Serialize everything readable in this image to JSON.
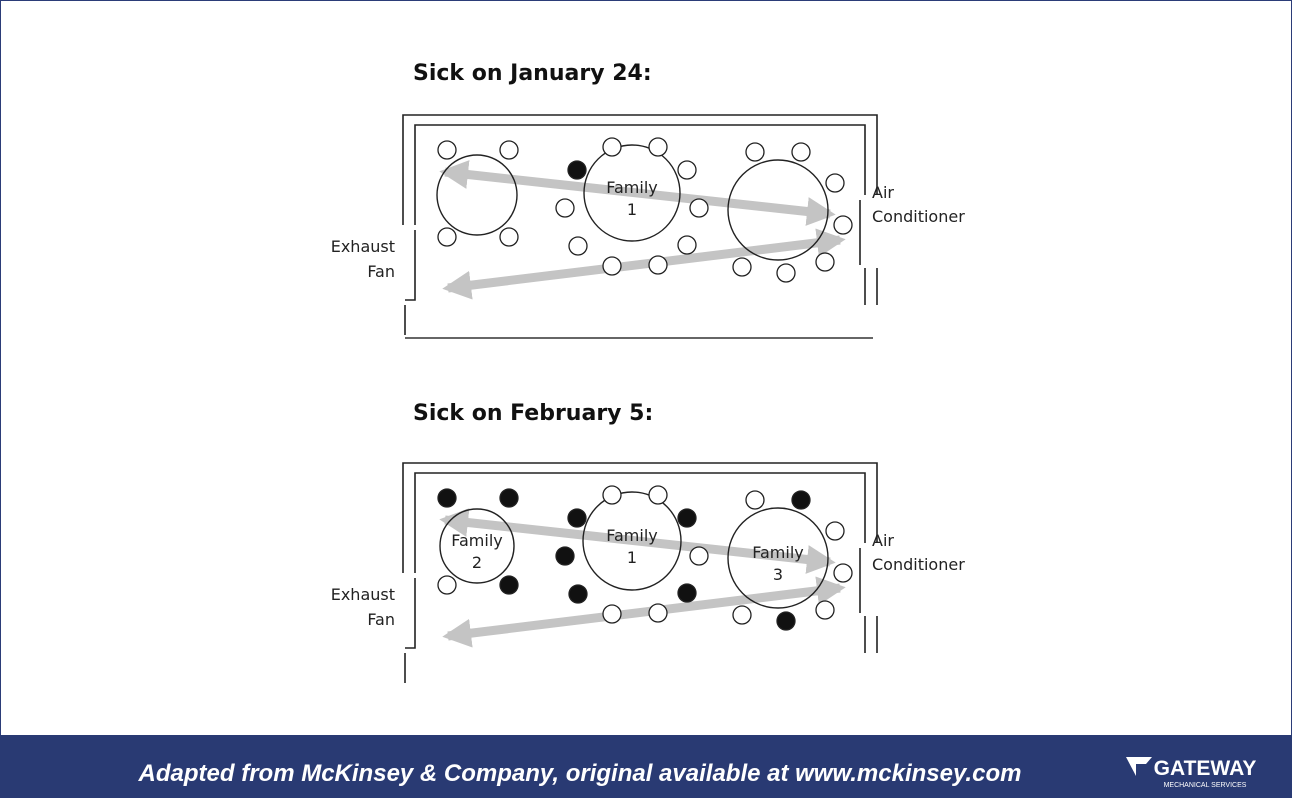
{
  "panels": [
    {
      "title": "Sick on January 24:",
      "left_label": [
        "Exhaust",
        "Fan"
      ],
      "right_label": [
        "Air",
        "Conditioner"
      ],
      "table_labels": [
        [
          "Family",
          "1"
        ]
      ]
    },
    {
      "title": "Sick on February 5:",
      "left_label": [
        "Exhaust",
        "Fan"
      ],
      "right_label": [
        "Air",
        "Conditioner"
      ],
      "table_labels": [
        [
          "Family",
          "2"
        ],
        [
          "Family",
          "1"
        ],
        [
          "Family",
          "3"
        ]
      ]
    }
  ],
  "footer": {
    "text": "Adapted from McKinsey & Company, original available at www.mckinsey.com",
    "logo": "GATEWAY",
    "logo_sub": "MECHANICAL SERVICES"
  }
}
